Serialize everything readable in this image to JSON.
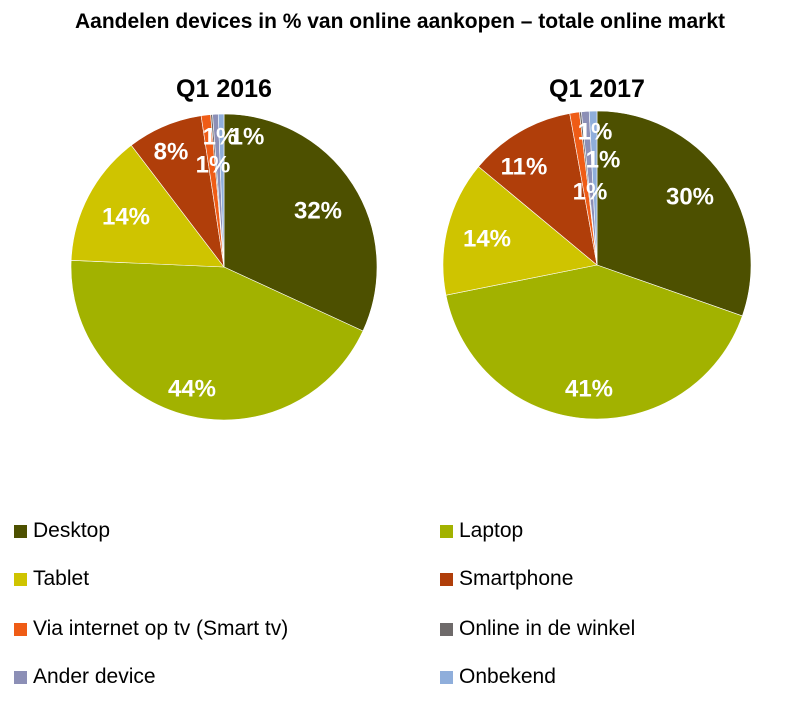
{
  "chart_data": {
    "type": "pie",
    "title": "Aandelen devices in % van online aankopen – totale online markt",
    "series_names": [
      "Desktop",
      "Laptop",
      "Tablet",
      "Smartphone",
      "Via internet op tv (Smart tv)",
      "Online in de winkel",
      "Ander device",
      "Onbekend"
    ],
    "colors": [
      "#4D5000",
      "#A2B200",
      "#CFC400",
      "#B03E0A",
      "#EF5C16",
      "#6E6A6A",
      "#8C8FB6",
      "#8FAEDB"
    ],
    "pies": [
      {
        "title": "Q1 2016",
        "values": [
          32,
          44,
          14,
          8,
          1,
          0.2,
          0.6,
          0.6
        ],
        "labels": [
          "32%",
          "44%",
          "14%",
          "8%",
          "1%",
          "",
          "1%",
          "1%"
        ]
      },
      {
        "title": "Q1 2017",
        "values": [
          30,
          41,
          14,
          11,
          1,
          0.2,
          0.8,
          0.8
        ],
        "labels": [
          "30%",
          "41%",
          "14%",
          "11%",
          "1%",
          "",
          "1%",
          "1%"
        ]
      }
    ],
    "legend_position": "bottom"
  }
}
